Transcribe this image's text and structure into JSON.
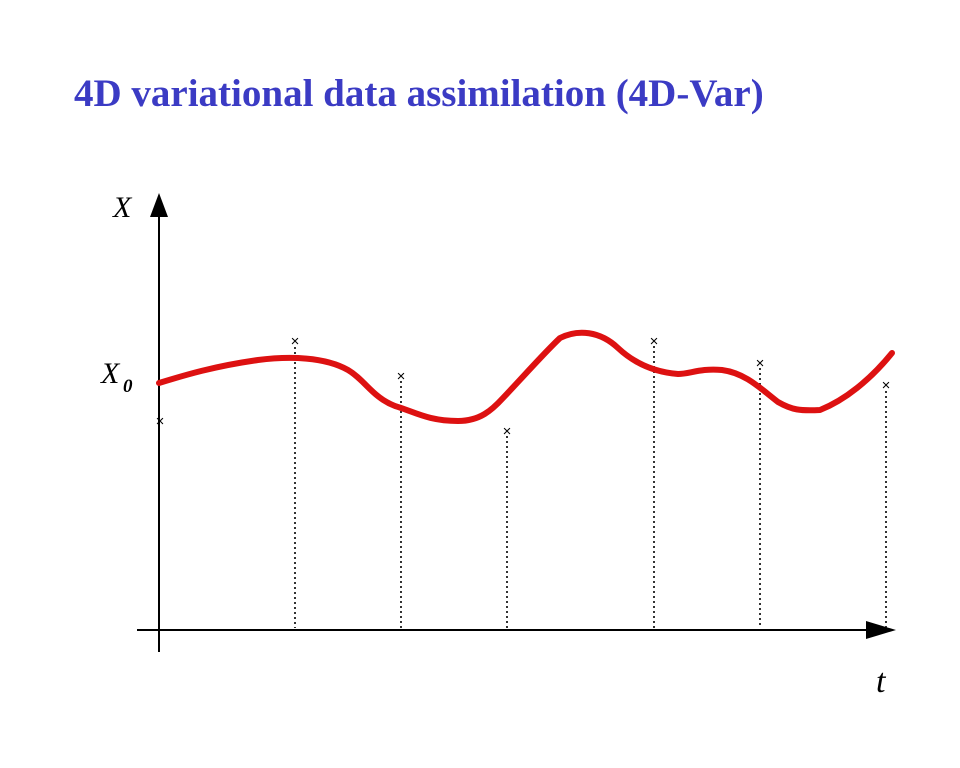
{
  "title": "4D variational data assimilation (4D-Var)",
  "diagram": {
    "y_axis_label": "X",
    "x_axis_label": "t",
    "initial_state_label": {
      "base": "X",
      "subscript": "0"
    },
    "observation_marker": "×",
    "colors": {
      "title": "#3b3bc4",
      "trajectory": "#dd1111",
      "axes": "#000000",
      "observation_lines": "#000000"
    },
    "line_styles": {
      "trajectory": "thick solid",
      "observation_lines": "dotted"
    },
    "observation_count": 7
  }
}
